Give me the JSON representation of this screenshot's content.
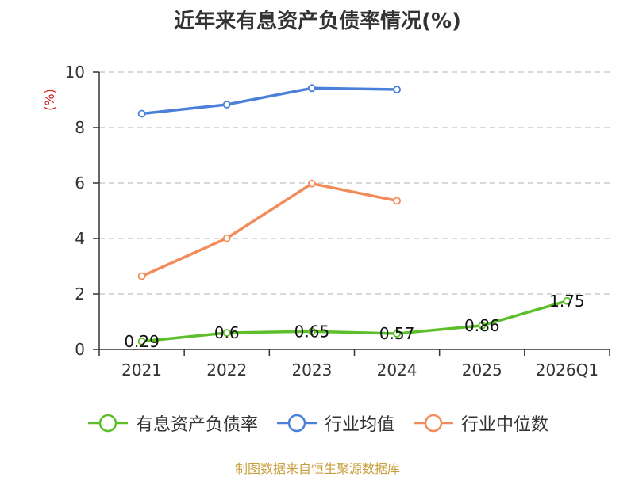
{
  "chart_data": {
    "type": "line",
    "title": "近年来有息资产负债率情况(%)",
    "ylabel": "(%)",
    "categories": [
      "2021",
      "2022",
      "2023",
      "2024",
      "2025",
      "2026Q1"
    ],
    "ylim": [
      0,
      10
    ],
    "yticks": [
      "0",
      "2",
      "4",
      "6",
      "8",
      "10"
    ],
    "grid": true,
    "legend_position": "bottom",
    "series": [
      {
        "name": "有息资产负债率",
        "color": "#5cbf2a",
        "values": [
          0.29,
          0.6,
          0.65,
          0.57,
          0.86,
          1.75
        ],
        "labels": [
          "0.29",
          "0.6",
          "0.65",
          "0.57",
          "0.86",
          "1.75"
        ]
      },
      {
        "name": "行业均值",
        "color": "#4a80d9",
        "values": [
          8.5,
          8.83,
          9.42,
          9.37,
          null,
          null
        ]
      },
      {
        "name": "行业中位数",
        "color": "#f28c5a",
        "values": [
          2.64,
          4.01,
          5.98,
          5.36,
          null,
          null
        ]
      }
    ]
  },
  "source": "制图数据来自恒生聚源数据库",
  "colors": {
    "source_text": "#c8a040",
    "ylabel": "#d02020",
    "grid": "#cccccc",
    "axis": "#333333"
  }
}
